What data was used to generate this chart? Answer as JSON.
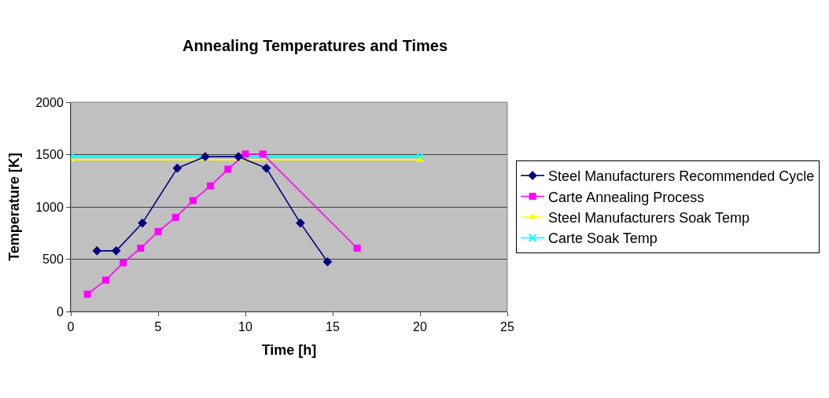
{
  "chart_data": {
    "type": "line",
    "title": "Annealing Temperatures and Times",
    "xlabel": "Time [h]",
    "ylabel": "Temperature [K]",
    "xlim": [
      0,
      25
    ],
    "xticks": [
      0,
      5,
      10,
      15,
      20,
      25
    ],
    "ylim": [
      0,
      2000
    ],
    "yticks": [
      0,
      500,
      1000,
      1500,
      2000
    ],
    "grid": "y",
    "legend": "right",
    "series": [
      {
        "name": "Steel Manufacturers Recommended Cycle",
        "color": "#000080",
        "marker": "diamond",
        "x": [
          1.5,
          2.6,
          4.1,
          6.1,
          7.7,
          9.6,
          11.2,
          13.15,
          14.7
        ],
        "values": [
          580,
          580,
          845,
          1370,
          1480,
          1480,
          1370,
          845,
          475
        ]
      },
      {
        "name": "Carte Annealing Process",
        "color": "#ff00ff",
        "marker": "square",
        "x": [
          0.95,
          2,
          3,
          4,
          5,
          6,
          7,
          8,
          9,
          10,
          11,
          16.4
        ],
        "values": [
          165,
          300,
          465,
          605,
          765,
          900,
          1060,
          1200,
          1360,
          1505,
          1505,
          605
        ]
      },
      {
        "name": "Steel Manufacturers Soak Temp",
        "color": "#ffff00",
        "marker": "triangle",
        "x": [
          0,
          20
        ],
        "values": [
          1450,
          1450
        ]
      },
      {
        "name": "Carte Soak Temp",
        "color": "#00ffff",
        "marker": "cross",
        "x": [
          0,
          20
        ],
        "values": [
          1480,
          1480
        ]
      }
    ]
  }
}
